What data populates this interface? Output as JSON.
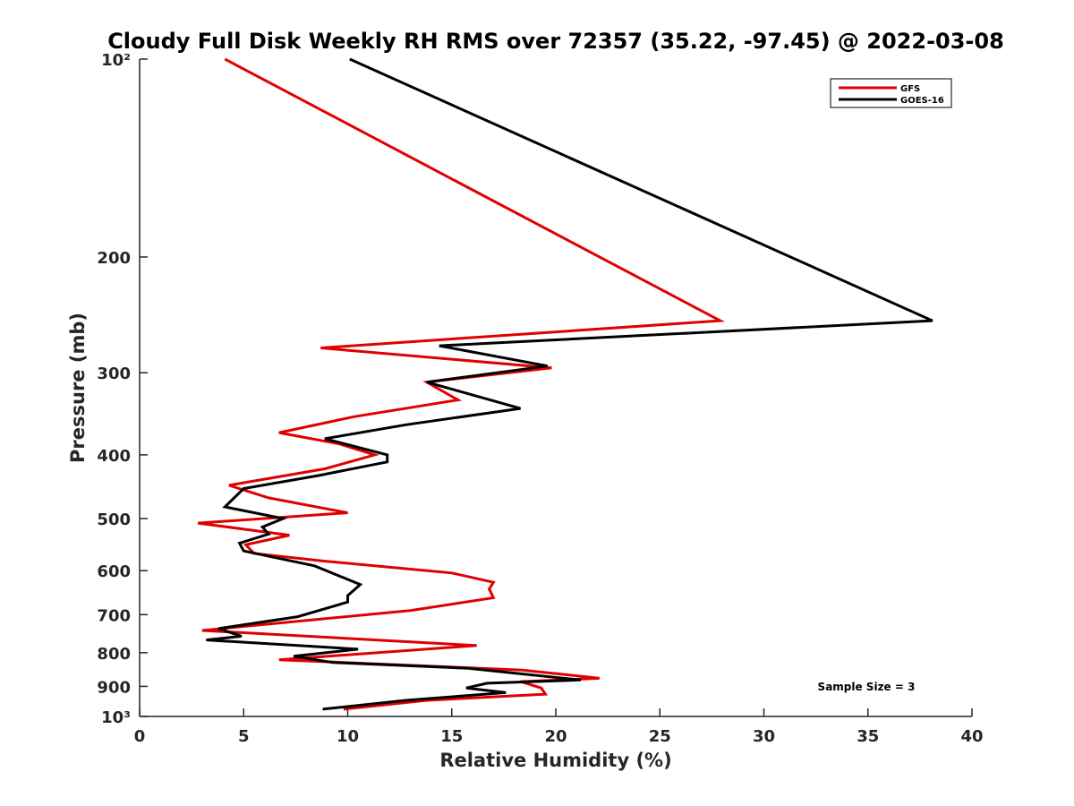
{
  "chart_data": {
    "type": "line",
    "title": "Cloudy Full Disk Weekly RH RMS over 72357 (35.22, -97.45) @ 2022-03-08",
    "xlabel": "Relative Humidity (%)",
    "ylabel": "Pressure (mb)",
    "xlim": [
      0,
      40
    ],
    "ylim": [
      100,
      1000
    ],
    "y_scale": "log",
    "y_reversed": true,
    "x_ticks": [
      0,
      5,
      10,
      15,
      20,
      25,
      30,
      35,
      40
    ],
    "x_tick_labels": [
      "0",
      "5",
      "10",
      "15",
      "20",
      "25",
      "30",
      "35",
      "40"
    ],
    "y_ticks": [
      100,
      200,
      300,
      400,
      500,
      600,
      700,
      800,
      900,
      1000
    ],
    "y_tick_labels": [
      "10²",
      "200",
      "300",
      "400",
      "500",
      "600",
      "700",
      "800",
      "900",
      "10³"
    ],
    "grid": false,
    "legend_position": "top-right",
    "series": [
      {
        "name": "GFS",
        "color": "#e00000",
        "points": [
          [
            4.1,
            100
          ],
          [
            27.9,
            250
          ],
          [
            8.7,
            275
          ],
          [
            19.8,
            295
          ],
          [
            13.8,
            310
          ],
          [
            15.3,
            330
          ],
          [
            10.3,
            350
          ],
          [
            6.7,
            370
          ],
          [
            9.6,
            385
          ],
          [
            11.3,
            400
          ],
          [
            8.9,
            420
          ],
          [
            4.3,
            445
          ],
          [
            6.2,
            465
          ],
          [
            10.0,
            490
          ],
          [
            2.8,
            508
          ],
          [
            7.2,
            530
          ],
          [
            5.1,
            548
          ],
          [
            5.5,
            565
          ],
          [
            8.8,
            580
          ],
          [
            15.0,
            605
          ],
          [
            17.0,
            625
          ],
          [
            16.8,
            640
          ],
          [
            17.0,
            660
          ],
          [
            13.0,
            690
          ],
          [
            3.0,
            740
          ],
          [
            16.2,
            780
          ],
          [
            6.7,
            820
          ],
          [
            18.4,
            850
          ],
          [
            22.1,
            875
          ],
          [
            18.3,
            885
          ],
          [
            19.3,
            905
          ],
          [
            19.5,
            925
          ],
          [
            13.8,
            945
          ],
          [
            9.8,
            975
          ]
        ]
      },
      {
        "name": "GOES-16",
        "color": "#000000",
        "points": [
          [
            10.1,
            100
          ],
          [
            38.1,
            250
          ],
          [
            14.4,
            273
          ],
          [
            19.6,
            293
          ],
          [
            13.8,
            310
          ],
          [
            18.3,
            340
          ],
          [
            12.8,
            360
          ],
          [
            8.9,
            378
          ],
          [
            11.9,
            400
          ],
          [
            11.9,
            410
          ],
          [
            8.6,
            430
          ],
          [
            5.0,
            450
          ],
          [
            4.1,
            480
          ],
          [
            6.9,
            500
          ],
          [
            5.9,
            515
          ],
          [
            6.2,
            528
          ],
          [
            4.8,
            545
          ],
          [
            5.0,
            560
          ],
          [
            8.4,
            590
          ],
          [
            10.6,
            630
          ],
          [
            10.0,
            655
          ],
          [
            10.0,
            670
          ],
          [
            7.6,
            705
          ],
          [
            3.8,
            735
          ],
          [
            4.9,
            755
          ],
          [
            3.2,
            765
          ],
          [
            10.5,
            790
          ],
          [
            7.4,
            810
          ],
          [
            9.3,
            828
          ],
          [
            15.8,
            845
          ],
          [
            21.2,
            880
          ],
          [
            16.7,
            890
          ],
          [
            15.7,
            905
          ],
          [
            17.6,
            920
          ],
          [
            12.8,
            945
          ],
          [
            8.8,
            975
          ]
        ]
      }
    ],
    "annotations": [
      {
        "text": "Sample Size = 3"
      }
    ]
  }
}
